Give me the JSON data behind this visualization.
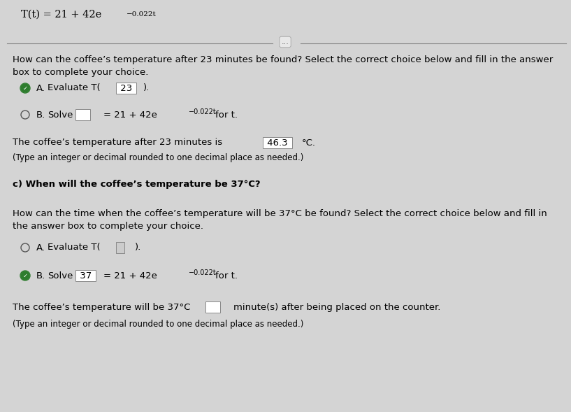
{
  "bg_color": "#d4d4d4",
  "top_formula_exp": "−0.022t",
  "q1_text": "How can the coffee’s temperature after 23 minutes be found? Select the correct choice below and fill in the answer\nbox to complete your choice.",
  "q1_A_label": "A.",
  "q1_B_label": "B.",
  "q1_B_exp": "−0.022t",
  "q1_answer_line1": "The coffee’s temperature after 23 minutes is",
  "q1_answer_box": "46.3",
  "q1_answer_unit": "°C.",
  "q1_type_note": "(Type an integer or decimal rounded to one decimal place as needed.)",
  "q2_header": "c) When will the coffee’s temperature be 37°C?",
  "q2_text": "How can the time when the coffee’s temperature will be 37°C be found? Select the correct choice below and fill in\nthe answer box to complete your choice.",
  "q2_A_label": "A.",
  "q2_B_label": "B.",
  "q2_B_exp": "−0.022t",
  "q2_answer_line": "The coffee’s temperature will be 37°C",
  "q2_answer_end": "minute(s) after being placed on the counter.",
  "q2_type_note": "(Type an integer or decimal rounded to one decimal place as needed.)"
}
